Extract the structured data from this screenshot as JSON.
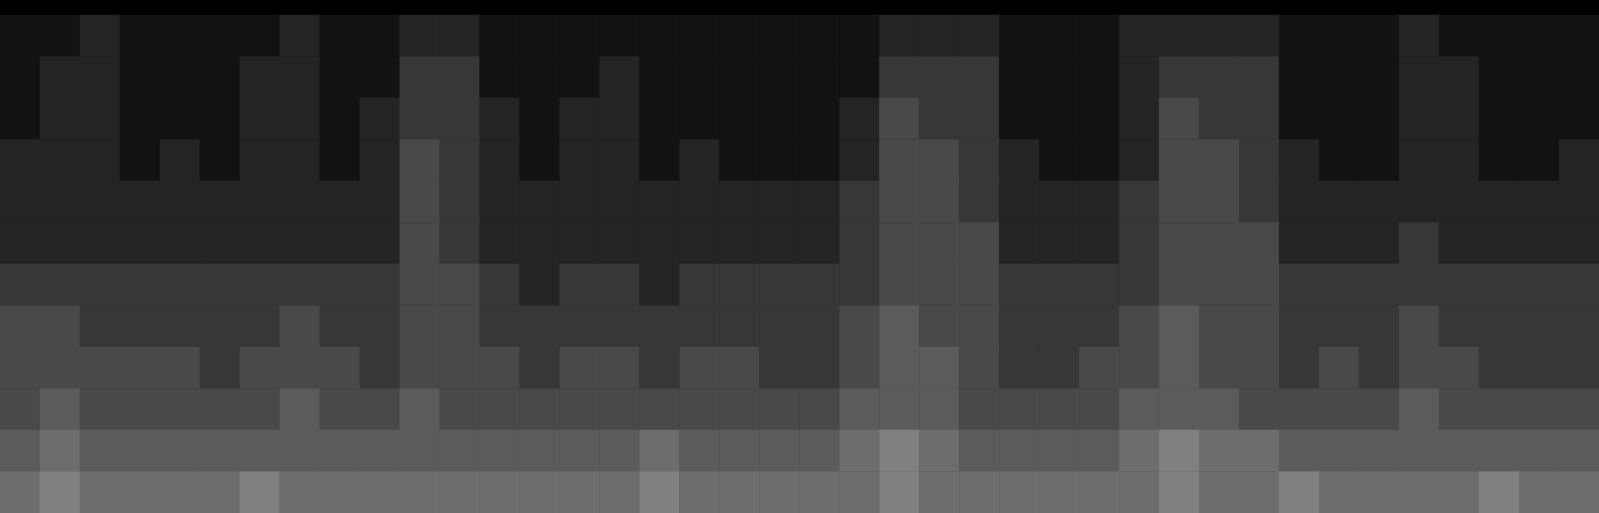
{
  "chart_data": {
    "type": "heatmap",
    "tick_labels": false,
    "grid": false,
    "color_range": [
      0,
      14
    ],
    "cells": [
      [
        1,
        1,
        2,
        1,
        1,
        1,
        1,
        2,
        1,
        1,
        2,
        2,
        1,
        1,
        1,
        1,
        1,
        1,
        1,
        1,
        1,
        1,
        2,
        2,
        2,
        1,
        1,
        1,
        2,
        2,
        2,
        2,
        1,
        1,
        1,
        2,
        1,
        1,
        1,
        1
      ],
      [
        1,
        2,
        2,
        1,
        1,
        1,
        2,
        2,
        1,
        1,
        3,
        3,
        1,
        1,
        1,
        2,
        1,
        1,
        1,
        1,
        1,
        1,
        3,
        3,
        3,
        1,
        1,
        1,
        2,
        3,
        3,
        3,
        1,
        1,
        1,
        2,
        2,
        1,
        1,
        1
      ],
      [
        1,
        2,
        2,
        1,
        1,
        1,
        2,
        2,
        1,
        2,
        3,
        3,
        2,
        1,
        2,
        2,
        1,
        1,
        1,
        1,
        1,
        2,
        4,
        3,
        3,
        1,
        1,
        1,
        2,
        4,
        3,
        3,
        1,
        1,
        1,
        2,
        2,
        1,
        1,
        1
      ],
      [
        2,
        2,
        2,
        1,
        2,
        1,
        2,
        2,
        1,
        2,
        4,
        3,
        2,
        1,
        2,
        2,
        1,
        2,
        1,
        1,
        1,
        2,
        4,
        4,
        3,
        2,
        1,
        1,
        2,
        4,
        4,
        3,
        2,
        1,
        1,
        2,
        2,
        1,
        1,
        2
      ],
      [
        2,
        2,
        2,
        2,
        2,
        2,
        2,
        2,
        2,
        2,
        4,
        3,
        2,
        2,
        2,
        2,
        2,
        2,
        2,
        2,
        2,
        3,
        4,
        4,
        3,
        2,
        2,
        2,
        3,
        4,
        4,
        3,
        2,
        2,
        2,
        2,
        2,
        2,
        2,
        2
      ],
      [
        2,
        2,
        2,
        2,
        2,
        2,
        2,
        2,
        2,
        2,
        4,
        3,
        2,
        2,
        2,
        2,
        2,
        2,
        2,
        2,
        2,
        3,
        4,
        4,
        4,
        2,
        2,
        2,
        3,
        4,
        4,
        4,
        2,
        2,
        2,
        3,
        2,
        2,
        2,
        2
      ],
      [
        3,
        3,
        3,
        3,
        3,
        3,
        3,
        3,
        3,
        3,
        4,
        4,
        3,
        2,
        3,
        3,
        2,
        3,
        3,
        3,
        3,
        3,
        4,
        4,
        4,
        3,
        3,
        3,
        3,
        4,
        4,
        4,
        3,
        3,
        3,
        3,
        3,
        3,
        3,
        3
      ],
      [
        4,
        4,
        3,
        3,
        3,
        3,
        3,
        4,
        3,
        3,
        4,
        4,
        3,
        3,
        3,
        3,
        3,
        3,
        3,
        3,
        3,
        4,
        5,
        4,
        4,
        3,
        3,
        3,
        4,
        5,
        4,
        4,
        3,
        3,
        3,
        4,
        3,
        3,
        3,
        3
      ],
      [
        4,
        4,
        4,
        4,
        4,
        3,
        4,
        4,
        4,
        3,
        4,
        4,
        4,
        3,
        4,
        4,
        3,
        4,
        4,
        3,
        3,
        4,
        5,
        5,
        4,
        3,
        3,
        4,
        4,
        5,
        4,
        4,
        3,
        4,
        3,
        4,
        4,
        3,
        3,
        3
      ],
      [
        4,
        5,
        4,
        4,
        4,
        4,
        4,
        5,
        4,
        4,
        5,
        4,
        4,
        4,
        4,
        4,
        4,
        4,
        4,
        4,
        4,
        5,
        5,
        5,
        4,
        4,
        4,
        4,
        5,
        5,
        5,
        4,
        4,
        4,
        4,
        5,
        4,
        4,
        4,
        4
      ],
      [
        5,
        6,
        5,
        5,
        5,
        5,
        5,
        5,
        5,
        5,
        5,
        5,
        5,
        5,
        5,
        5,
        6,
        5,
        5,
        5,
        5,
        6,
        7,
        6,
        5,
        5,
        5,
        5,
        6,
        7,
        6,
        6,
        5,
        5,
        5,
        5,
        5,
        5,
        5,
        5
      ],
      [
        6,
        7,
        6,
        6,
        6,
        6,
        7,
        6,
        6,
        6,
        6,
        6,
        6,
        6,
        6,
        6,
        7,
        6,
        6,
        6,
        6,
        6,
        7,
        6,
        6,
        6,
        6,
        6,
        6,
        7,
        6,
        6,
        7,
        6,
        6,
        6,
        6,
        7,
        6,
        6
      ]
    ]
  }
}
